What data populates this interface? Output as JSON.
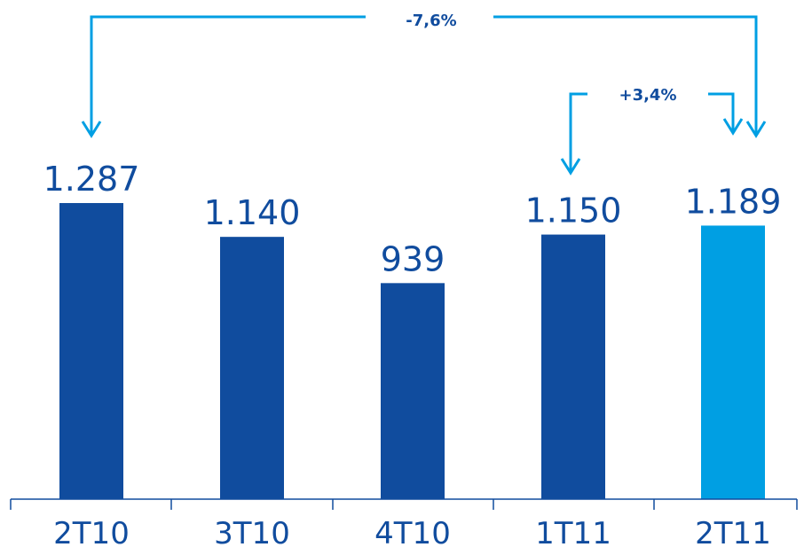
{
  "chart_data": {
    "type": "bar",
    "categories": [
      "2T10",
      "3T10",
      "4T10",
      "1T11",
      "2T11"
    ],
    "values": [
      1287,
      1140,
      939,
      1150,
      1189
    ],
    "value_labels": [
      "1.287",
      "1.140",
      "939",
      "1.150",
      "1.189"
    ],
    "ylim": [
      0,
      1500
    ],
    "grid": false,
    "colors": {
      "bar": "#104C9E",
      "highlight_bar": "#009FE3",
      "arrow": "#009FE3",
      "text": "#104C9E",
      "axis": "#104C9E"
    },
    "highlight_index": 4,
    "annotations": [
      {
        "label": "-7,6%",
        "from_index": 0,
        "to_index": 4
      },
      {
        "label": "+3,4%",
        "from_index": 3,
        "to_index": 4
      }
    ]
  }
}
